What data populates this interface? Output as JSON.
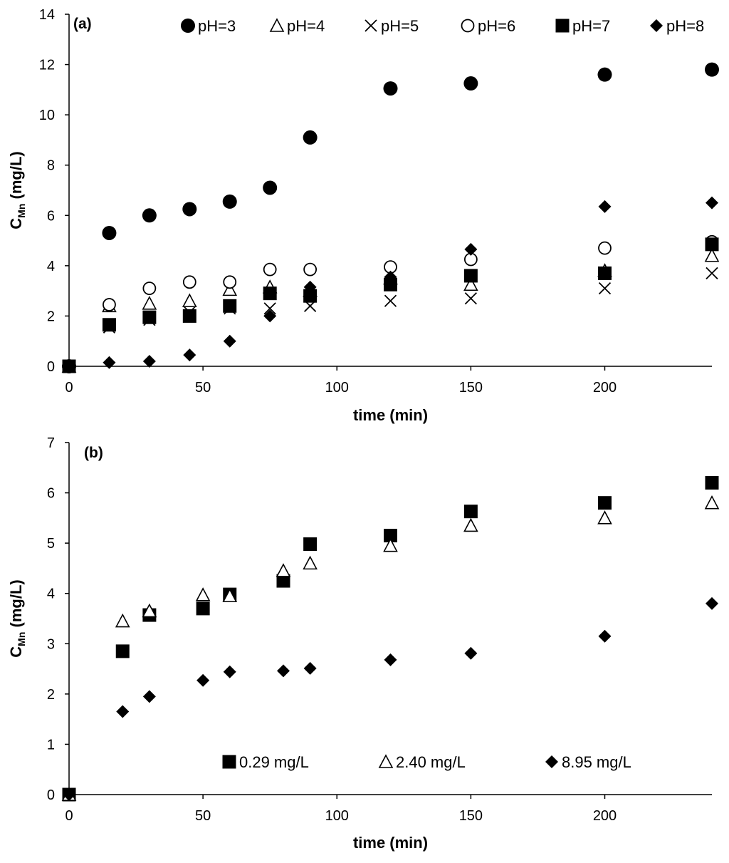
{
  "chart_data": [
    {
      "type": "scatter",
      "panel_label": "(a)",
      "xlabel": "time (min)",
      "ylabel": "C",
      "ylabel_sub": "Mn",
      "ylabel_unit": " (mg/L)",
      "xlim": [
        0,
        240
      ],
      "ylim": [
        0,
        14
      ],
      "xticks": [
        0,
        50,
        100,
        150,
        200
      ],
      "yticks": [
        0,
        2,
        4,
        6,
        8,
        10,
        12,
        14
      ],
      "grid": false,
      "legend_position": "top",
      "series": [
        {
          "name": "pH=3",
          "marker": "circle-filled",
          "x": [
            0,
            15,
            30,
            45,
            60,
            75,
            90,
            120,
            150,
            200,
            240
          ],
          "y": [
            0,
            5.3,
            6.0,
            6.25,
            6.55,
            7.1,
            9.1,
            11.05,
            11.25,
            11.6,
            11.8
          ]
        },
        {
          "name": "pH=4",
          "marker": "triangle-open",
          "x": [
            0,
            15,
            30,
            45,
            60,
            75,
            90,
            120,
            150,
            200,
            240
          ],
          "y": [
            0,
            2.4,
            2.5,
            2.6,
            3.05,
            3.15,
            3.0,
            3.5,
            3.25,
            3.8,
            4.4
          ]
        },
        {
          "name": "pH=5",
          "marker": "x",
          "x": [
            0,
            15,
            30,
            45,
            60,
            75,
            90,
            120,
            150,
            200,
            240
          ],
          "y": [
            0,
            1.55,
            1.85,
            2.15,
            2.3,
            2.3,
            2.4,
            2.6,
            2.7,
            3.1,
            3.7
          ]
        },
        {
          "name": "pH=6",
          "marker": "circle-open",
          "x": [
            0,
            15,
            30,
            45,
            60,
            75,
            90,
            120,
            150,
            200,
            240
          ],
          "y": [
            0,
            2.45,
            3.1,
            3.35,
            3.35,
            3.85,
            3.85,
            3.95,
            4.25,
            4.7,
            4.95
          ]
        },
        {
          "name": "pH=7",
          "marker": "square-filled",
          "x": [
            0,
            15,
            30,
            45,
            60,
            75,
            90,
            120,
            150,
            200,
            240
          ],
          "y": [
            0,
            1.65,
            1.95,
            2.0,
            2.4,
            2.9,
            2.8,
            3.25,
            3.6,
            3.7,
            4.85
          ]
        },
        {
          "name": "pH=8",
          "marker": "diamond-filled",
          "x": [
            0,
            15,
            30,
            45,
            60,
            75,
            90,
            120,
            150,
            200,
            240
          ],
          "y": [
            0,
            0.15,
            0.2,
            0.45,
            1.0,
            2.0,
            3.15,
            3.55,
            4.65,
            6.35,
            6.5
          ]
        }
      ]
    },
    {
      "type": "scatter",
      "panel_label": "(b)",
      "xlabel": "time (min)",
      "ylabel": "C",
      "ylabel_sub": "Mn",
      "ylabel_unit": " (mg/L)",
      "xlim": [
        0,
        240
      ],
      "ylim": [
        0,
        7
      ],
      "xticks": [
        0,
        50,
        100,
        150,
        200
      ],
      "yticks": [
        0,
        1,
        2,
        3,
        4,
        5,
        6,
        7
      ],
      "grid": false,
      "legend_position": "bottom",
      "series": [
        {
          "name": "0.29 mg/L",
          "marker": "square-filled",
          "x": [
            0,
            20,
            30,
            50,
            60,
            80,
            90,
            120,
            150,
            200,
            240
          ],
          "y": [
            0,
            2.85,
            3.57,
            3.7,
            3.98,
            4.25,
            4.98,
            5.15,
            5.63,
            5.8,
            6.2
          ]
        },
        {
          "name": "2.40 mg/L",
          "marker": "triangle-open",
          "x": [
            0,
            20,
            30,
            50,
            60,
            80,
            90,
            120,
            150,
            200,
            240
          ],
          "y": [
            0,
            3.45,
            3.65,
            3.97,
            3.95,
            4.45,
            4.6,
            4.95,
            5.35,
            5.5,
            5.8
          ]
        },
        {
          "name": "8.95 mg/L",
          "marker": "diamond-filled",
          "x": [
            0,
            20,
            30,
            50,
            60,
            80,
            90,
            120,
            150,
            200,
            240
          ],
          "y": [
            0,
            1.65,
            1.95,
            2.27,
            2.44,
            2.46,
            2.51,
            2.68,
            2.81,
            3.15,
            3.8
          ]
        }
      ]
    }
  ]
}
